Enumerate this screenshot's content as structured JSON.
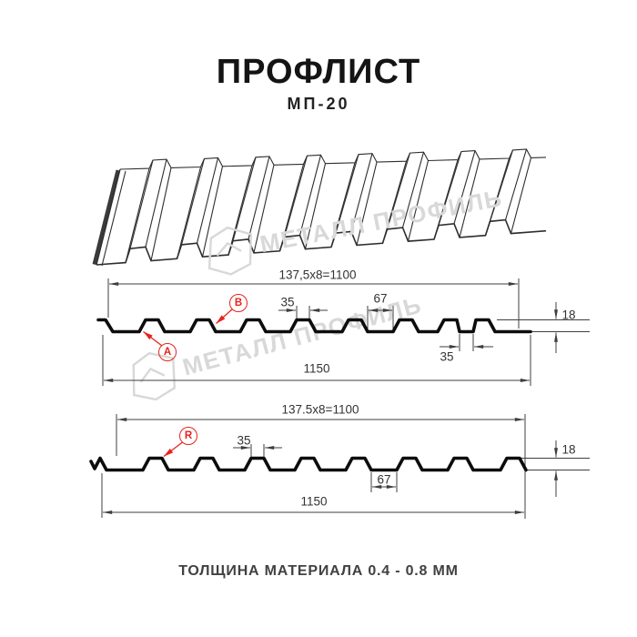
{
  "header": {
    "title": "ПРОФЛИСТ",
    "subtitle": "МП-20"
  },
  "footer": {
    "text": "ТОЛЩИНА МАТЕРИАЛА 0.4 - 0.8 ММ"
  },
  "watermark": {
    "text": "МЕТАЛЛ ПРОФИЛЬ"
  },
  "colors": {
    "accent_red": "#e8231d",
    "dimension_line": "#3f3f3f",
    "profile_line": "#0d0d0d",
    "watermark_gray": "#d8d8d8"
  },
  "profile_top": {
    "module_label": "137,5x8=1100",
    "crest_width": "35",
    "valley_width": "67",
    "groove_width": "35",
    "height": "18",
    "overall_width": "1150",
    "side_label_a": "A",
    "side_label_b": "B"
  },
  "profile_bottom": {
    "module_label": "137.5x8=1100",
    "crest_width": "35",
    "valley_width": "67",
    "height": "18",
    "overall_width": "1150",
    "side_label_r": "R"
  }
}
